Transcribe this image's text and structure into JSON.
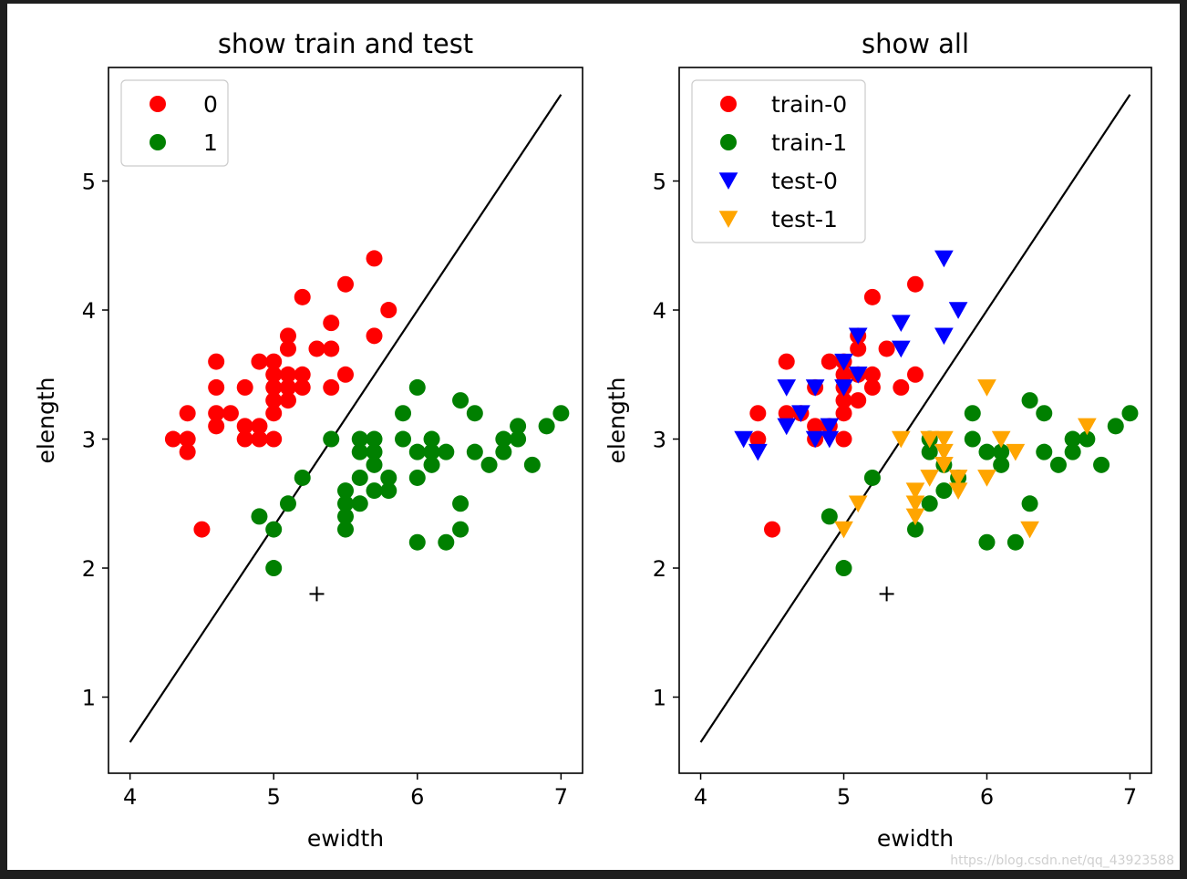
{
  "watermark": "https://blog.csdn.net/qq_43923588",
  "chart_data": [
    {
      "type": "scatter",
      "title": "show train and test",
      "xlabel": "ewidth",
      "ylabel": "elength",
      "xlim": [
        3.85,
        7.15
      ],
      "ylim": [
        0.41,
        5.88
      ],
      "xticks": [
        4,
        5,
        6,
        7
      ],
      "yticks": [
        1,
        2,
        3,
        4,
        5
      ],
      "legend_position": "upper-left",
      "line": {
        "name": "decision-boundary",
        "x": [
          4.0,
          7.0
        ],
        "y": [
          0.65,
          5.67
        ],
        "color": "#000000"
      },
      "marker_point": {
        "x": 5.3,
        "y": 1.8,
        "symbol": "+"
      },
      "series": [
        {
          "name": "0",
          "marker": "circle",
          "color": "#ff0000",
          "points": [
            [
              4.3,
              3.0
            ],
            [
              4.4,
              3.0
            ],
            [
              4.4,
              2.9
            ],
            [
              4.4,
              3.2
            ],
            [
              4.5,
              2.3
            ],
            [
              4.6,
              3.6
            ],
            [
              4.6,
              3.4
            ],
            [
              4.6,
              3.2
            ],
            [
              4.6,
              3.1
            ],
            [
              4.7,
              3.2
            ],
            [
              4.8,
              3.4
            ],
            [
              4.8,
              3.1
            ],
            [
              4.8,
              3.0
            ],
            [
              4.9,
              3.6
            ],
            [
              4.9,
              3.1
            ],
            [
              4.9,
              3.0
            ],
            [
              5.0,
              3.6
            ],
            [
              5.0,
              3.5
            ],
            [
              5.0,
              3.4
            ],
            [
              5.0,
              3.3
            ],
            [
              5.0,
              3.2
            ],
            [
              5.0,
              3.0
            ],
            [
              5.1,
              3.8
            ],
            [
              5.1,
              3.7
            ],
            [
              5.1,
              3.5
            ],
            [
              5.1,
              3.4
            ],
            [
              5.1,
              3.3
            ],
            [
              5.2,
              4.1
            ],
            [
              5.2,
              3.5
            ],
            [
              5.2,
              3.4
            ],
            [
              5.3,
              3.7
            ],
            [
              5.4,
              3.9
            ],
            [
              5.4,
              3.7
            ],
            [
              5.4,
              3.4
            ],
            [
              5.5,
              4.2
            ],
            [
              5.5,
              3.5
            ],
            [
              5.7,
              4.4
            ],
            [
              5.7,
              3.8
            ],
            [
              5.8,
              4.0
            ]
          ]
        },
        {
          "name": "1",
          "marker": "circle",
          "color": "#008000",
          "points": [
            [
              4.9,
              2.4
            ],
            [
              5.0,
              2.3
            ],
            [
              5.0,
              2.0
            ],
            [
              5.1,
              2.5
            ],
            [
              5.2,
              2.7
            ],
            [
              5.4,
              3.0
            ],
            [
              5.5,
              2.6
            ],
            [
              5.5,
              2.5
            ],
            [
              5.5,
              2.4
            ],
            [
              5.5,
              2.3
            ],
            [
              5.6,
              3.0
            ],
            [
              5.6,
              2.9
            ],
            [
              5.6,
              2.7
            ],
            [
              5.6,
              2.5
            ],
            [
              5.7,
              3.0
            ],
            [
              5.7,
              2.9
            ],
            [
              5.7,
              2.8
            ],
            [
              5.7,
              2.6
            ],
            [
              5.8,
              2.7
            ],
            [
              5.8,
              2.6
            ],
            [
              5.9,
              3.2
            ],
            [
              5.9,
              3.0
            ],
            [
              6.0,
              3.4
            ],
            [
              6.0,
              2.9
            ],
            [
              6.0,
              2.7
            ],
            [
              6.0,
              2.2
            ],
            [
              6.1,
              3.0
            ],
            [
              6.1,
              2.9
            ],
            [
              6.1,
              2.8
            ],
            [
              6.2,
              2.9
            ],
            [
              6.2,
              2.2
            ],
            [
              6.3,
              3.3
            ],
            [
              6.3,
              2.5
            ],
            [
              6.3,
              2.3
            ],
            [
              6.4,
              3.2
            ],
            [
              6.4,
              2.9
            ],
            [
              6.5,
              2.8
            ],
            [
              6.6,
              3.0
            ],
            [
              6.6,
              2.9
            ],
            [
              6.7,
              3.1
            ],
            [
              6.7,
              3.0
            ],
            [
              6.8,
              2.8
            ],
            [
              6.9,
              3.1
            ],
            [
              7.0,
              3.2
            ]
          ]
        }
      ]
    },
    {
      "type": "scatter",
      "title": "show all",
      "xlabel": "ewidth",
      "ylabel": "elength",
      "xlim": [
        3.85,
        7.15
      ],
      "ylim": [
        0.41,
        5.88
      ],
      "xticks": [
        4,
        5,
        6,
        7
      ],
      "yticks": [
        1,
        2,
        3,
        4,
        5
      ],
      "legend_position": "upper-left",
      "line": {
        "name": "decision-boundary",
        "x": [
          4.0,
          7.0
        ],
        "y": [
          0.65,
          5.67
        ],
        "color": "#000000"
      },
      "marker_point": {
        "x": 5.3,
        "y": 1.8,
        "symbol": "+"
      },
      "series": [
        {
          "name": "train-0",
          "marker": "circle",
          "color": "#ff0000",
          "points": [
            [
              4.4,
              3.2
            ],
            [
              4.4,
              3.0
            ],
            [
              4.5,
              2.3
            ],
            [
              4.6,
              3.6
            ],
            [
              4.6,
              3.2
            ],
            [
              4.7,
              3.2
            ],
            [
              4.8,
              3.4
            ],
            [
              4.8,
              3.1
            ],
            [
              4.8,
              3.0
            ],
            [
              4.9,
              3.6
            ],
            [
              4.9,
              3.1
            ],
            [
              5.0,
              3.6
            ],
            [
              5.0,
              3.5
            ],
            [
              5.0,
              3.4
            ],
            [
              5.0,
              3.3
            ],
            [
              5.0,
              3.2
            ],
            [
              5.0,
              3.0
            ],
            [
              5.1,
              3.8
            ],
            [
              5.1,
              3.7
            ],
            [
              5.1,
              3.5
            ],
            [
              5.1,
              3.3
            ],
            [
              5.2,
              4.1
            ],
            [
              5.2,
              3.5
            ],
            [
              5.2,
              3.4
            ],
            [
              5.3,
              3.7
            ],
            [
              5.4,
              3.4
            ],
            [
              5.5,
              4.2
            ],
            [
              5.5,
              3.5
            ]
          ]
        },
        {
          "name": "train-1",
          "marker": "circle",
          "color": "#008000",
          "points": [
            [
              4.9,
              2.4
            ],
            [
              5.0,
              2.0
            ],
            [
              5.2,
              2.7
            ],
            [
              5.5,
              2.3
            ],
            [
              5.6,
              3.0
            ],
            [
              5.6,
              2.9
            ],
            [
              5.6,
              2.5
            ],
            [
              5.7,
              2.8
            ],
            [
              5.7,
              2.6
            ],
            [
              5.8,
              2.7
            ],
            [
              5.9,
              3.2
            ],
            [
              5.9,
              3.0
            ],
            [
              6.0,
              2.9
            ],
            [
              6.0,
              2.2
            ],
            [
              6.1,
              2.9
            ],
            [
              6.1,
              2.8
            ],
            [
              6.2,
              2.2
            ],
            [
              6.3,
              3.3
            ],
            [
              6.3,
              2.5
            ],
            [
              6.4,
              3.2
            ],
            [
              6.4,
              2.9
            ],
            [
              6.5,
              2.8
            ],
            [
              6.6,
              3.0
            ],
            [
              6.6,
              2.9
            ],
            [
              6.7,
              3.0
            ],
            [
              6.8,
              2.8
            ],
            [
              6.9,
              3.1
            ],
            [
              7.0,
              3.2
            ]
          ]
        },
        {
          "name": "test-0",
          "marker": "triangle-down",
          "color": "#0000ff",
          "points": [
            [
              4.3,
              3.0
            ],
            [
              4.4,
              2.9
            ],
            [
              4.6,
              3.4
            ],
            [
              4.6,
              3.1
            ],
            [
              4.7,
              3.2
            ],
            [
              4.8,
              3.4
            ],
            [
              4.8,
              3.0
            ],
            [
              4.9,
              3.1
            ],
            [
              4.9,
              3.0
            ],
            [
              5.0,
              3.6
            ],
            [
              5.0,
              3.4
            ],
            [
              5.1,
              3.8
            ],
            [
              5.1,
              3.5
            ],
            [
              5.4,
              3.9
            ],
            [
              5.4,
              3.7
            ],
            [
              5.7,
              4.4
            ],
            [
              5.7,
              3.8
            ],
            [
              5.8,
              4.0
            ]
          ]
        },
        {
          "name": "test-1",
          "marker": "triangle-down",
          "color": "#ffa500",
          "points": [
            [
              5.0,
              2.3
            ],
            [
              5.1,
              2.5
            ],
            [
              5.4,
              3.0
            ],
            [
              5.5,
              2.6
            ],
            [
              5.5,
              2.5
            ],
            [
              5.5,
              2.4
            ],
            [
              5.6,
              3.0
            ],
            [
              5.6,
              2.7
            ],
            [
              5.7,
              3.0
            ],
            [
              5.7,
              2.9
            ],
            [
              5.7,
              2.8
            ],
            [
              5.8,
              2.7
            ],
            [
              5.8,
              2.6
            ],
            [
              6.0,
              3.4
            ],
            [
              6.0,
              2.7
            ],
            [
              6.1,
              3.0
            ],
            [
              6.2,
              2.9
            ],
            [
              6.3,
              2.3
            ],
            [
              6.7,
              3.1
            ]
          ]
        }
      ]
    }
  ]
}
